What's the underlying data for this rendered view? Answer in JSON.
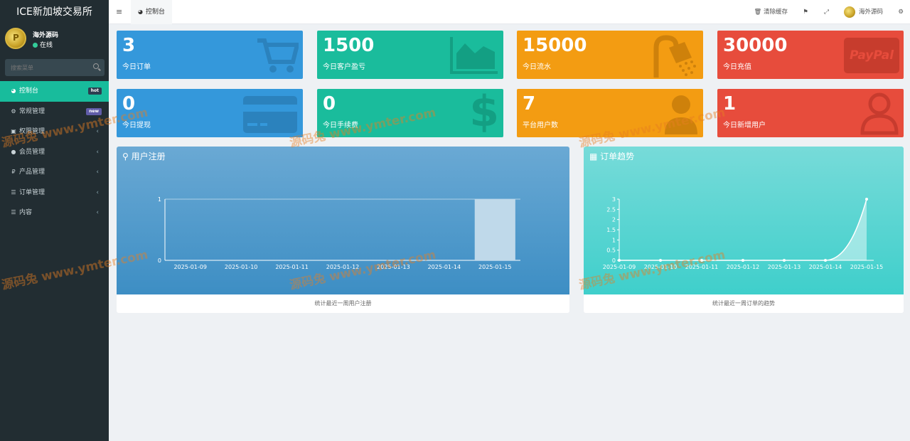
{
  "app": {
    "title": "ICE新加坡交易所"
  },
  "user": {
    "name": "海外源码",
    "status": "在线"
  },
  "search": {
    "placeholder": "搜索菜单"
  },
  "menu": [
    {
      "label": "控制台",
      "icon": "dashboard-icon",
      "badge": "hot",
      "active": true
    },
    {
      "label": "常规管理",
      "icon": "cogs-icon",
      "badge": "new"
    },
    {
      "label": "权限管理",
      "icon": "group-icon"
    },
    {
      "label": "会员管理",
      "icon": "user-circle-icon"
    },
    {
      "label": "产品管理",
      "icon": "ruble-icon"
    },
    {
      "label": "订单管理",
      "icon": "list-icon"
    },
    {
      "label": "内容",
      "icon": "list-icon"
    }
  ],
  "header": {
    "tab_label": "控制台",
    "clear_cache": "清除缓存",
    "username": "海外源码"
  },
  "stats": [
    {
      "value": "3",
      "label": "今日订单",
      "color": "#3498db",
      "icon": "shopping-cart-icon"
    },
    {
      "value": "1500",
      "label": "今日客户盈亏",
      "color": "#1abc9c",
      "icon": "area-chart-icon"
    },
    {
      "value": "15000",
      "label": "今日流水",
      "color": "#f39c12",
      "icon": "shower-icon"
    },
    {
      "value": "30000",
      "label": "今日充值",
      "color": "#e74c3c",
      "icon": "paypal-icon",
      "icon_text": "PayPal"
    },
    {
      "value": "0",
      "label": "今日提现",
      "color": "#3498db",
      "icon": "credit-card-icon"
    },
    {
      "value": "0",
      "label": "今日手续费",
      "color": "#1abc9c",
      "icon": "dollar-icon",
      "icon_text": "$"
    },
    {
      "value": "7",
      "label": "平台用户数",
      "color": "#f39c12",
      "icon": "user-icon"
    },
    {
      "value": "1",
      "label": "今日新增用户",
      "color": "#e74c3c",
      "icon": "user-outline-icon"
    }
  ],
  "panels": {
    "register": {
      "title": "用户注册",
      "footer": "统计最近一周用户注册"
    },
    "orders": {
      "title": "订单趋势",
      "footer": "统计最近一周订单的趋势"
    }
  },
  "watermark": {
    "text": "源码兔 www.ymter.com"
  },
  "chart_data": [
    {
      "type": "bar",
      "title": "用户注册",
      "categories": [
        "2025-01-09",
        "2025-01-10",
        "2025-01-11",
        "2025-01-12",
        "2025-01-13",
        "2025-01-14",
        "2025-01-15"
      ],
      "values": [
        0,
        0,
        0,
        0,
        0,
        0,
        1
      ],
      "ylim": [
        0,
        1
      ],
      "yticks": [
        "0",
        "1"
      ]
    },
    {
      "type": "area",
      "title": "订单趋势",
      "categories": [
        "2025-01-09",
        "2025-01-10",
        "2025-01-11",
        "2025-01-12",
        "2025-01-13",
        "2025-01-14",
        "2025-01-15"
      ],
      "values": [
        0,
        0,
        0,
        0,
        0,
        0,
        3
      ],
      "ylim": [
        0,
        3
      ],
      "yticks": [
        "0",
        "0.5",
        "1",
        "1.5",
        "2",
        "2.5",
        "3"
      ]
    }
  ]
}
